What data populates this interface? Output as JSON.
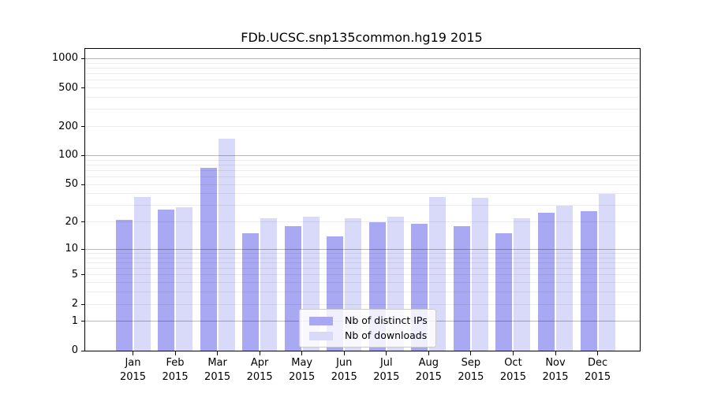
{
  "chart_data": {
    "type": "bar",
    "title": "FDb.UCSC.snp135common.hg19 2015",
    "xlabel": "",
    "ylabel": "",
    "yscale": "log-like (position proportional to log10(1+y), 0 at baseline)",
    "ylim": [
      0,
      1260
    ],
    "grid": "horizontal major (1,10,100,1000) and minor (2-9 per decade), drawn over bars",
    "legend_position": "lower center inside plot",
    "categories": [
      "Jan 2015",
      "Feb 2015",
      "Mar 2015",
      "Apr 2015",
      "May 2015",
      "Jun 2015",
      "Jul 2015",
      "Aug 2015",
      "Sep 2015",
      "Oct 2015",
      "Nov 2015",
      "Dec 2015"
    ],
    "yticks": [
      1000,
      500,
      200,
      100,
      50,
      20,
      10,
      5,
      2,
      1,
      0
    ],
    "series": [
      {
        "name": "Nb of distinct IPs",
        "color": "#a8a8f3",
        "values": [
          21,
          27,
          75,
          15,
          18,
          14,
          20,
          19,
          18,
          15,
          25,
          26
        ]
      },
      {
        "name": "Nb of downloads",
        "color": "#d9d9f9",
        "values": [
          37,
          29,
          150,
          22,
          23,
          22,
          23,
          37,
          36,
          22,
          30,
          40
        ]
      }
    ]
  }
}
